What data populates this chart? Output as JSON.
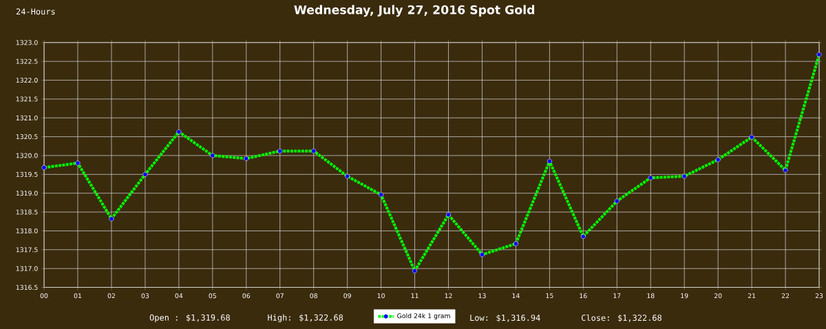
{
  "chart_data": {
    "type": "line",
    "title": "Wednesday, July 27, 2016 Spot Gold",
    "categories": [
      "00",
      "01",
      "02",
      "03",
      "04",
      "05",
      "06",
      "07",
      "08",
      "09",
      "10",
      "11",
      "12",
      "13",
      "14",
      "15",
      "16",
      "17",
      "18",
      "19",
      "20",
      "21",
      "22",
      "23"
    ],
    "series": [
      {
        "name": "Gold 24k 1 gram",
        "color": "#00ff00",
        "values": [
          1319.68,
          1319.8,
          1318.32,
          1319.5,
          1320.63,
          1320.0,
          1319.92,
          1320.12,
          1320.12,
          1319.45,
          1318.96,
          1316.94,
          1318.43,
          1317.37,
          1317.66,
          1319.85,
          1317.85,
          1318.79,
          1319.41,
          1319.45,
          1319.89,
          1320.49,
          1319.61,
          1322.68
        ]
      }
    ],
    "ylim": [
      1316.5,
      1323.0
    ],
    "yticks": [
      {
        "value": 1316.5,
        "label": "1316.5"
      },
      {
        "value": 1317.0,
        "label": "1317.0"
      },
      {
        "value": 1317.5,
        "label": "1317.5"
      },
      {
        "value": 1318.0,
        "label": "1318.0"
      },
      {
        "value": 1318.5,
        "label": "1318.5"
      },
      {
        "value": 1319.0,
        "label": "1319.0"
      },
      {
        "value": 1319.5,
        "label": "1319.5"
      },
      {
        "value": 1320.0,
        "label": "1320.0"
      },
      {
        "value": 1320.5,
        "label": "1320.5"
      },
      {
        "value": 1321.0,
        "label": "1321.0"
      },
      {
        "value": 1321.5,
        "label": "1321.5"
      },
      {
        "value": 1322.0,
        "label": "1322.0"
      },
      {
        "value": 1322.5,
        "label": "1322.5"
      },
      {
        "value": 1323.0,
        "label": "1323.0"
      }
    ],
    "grid": true,
    "legend": "bottom",
    "marker": "circle",
    "line_style": "dotted",
    "annotations": [
      "24-Hours",
      "Open : $1,319.68",
      "High: $1,322.68",
      "Low: $1,316.94",
      "Close: $1,322.68"
    ]
  }
}
